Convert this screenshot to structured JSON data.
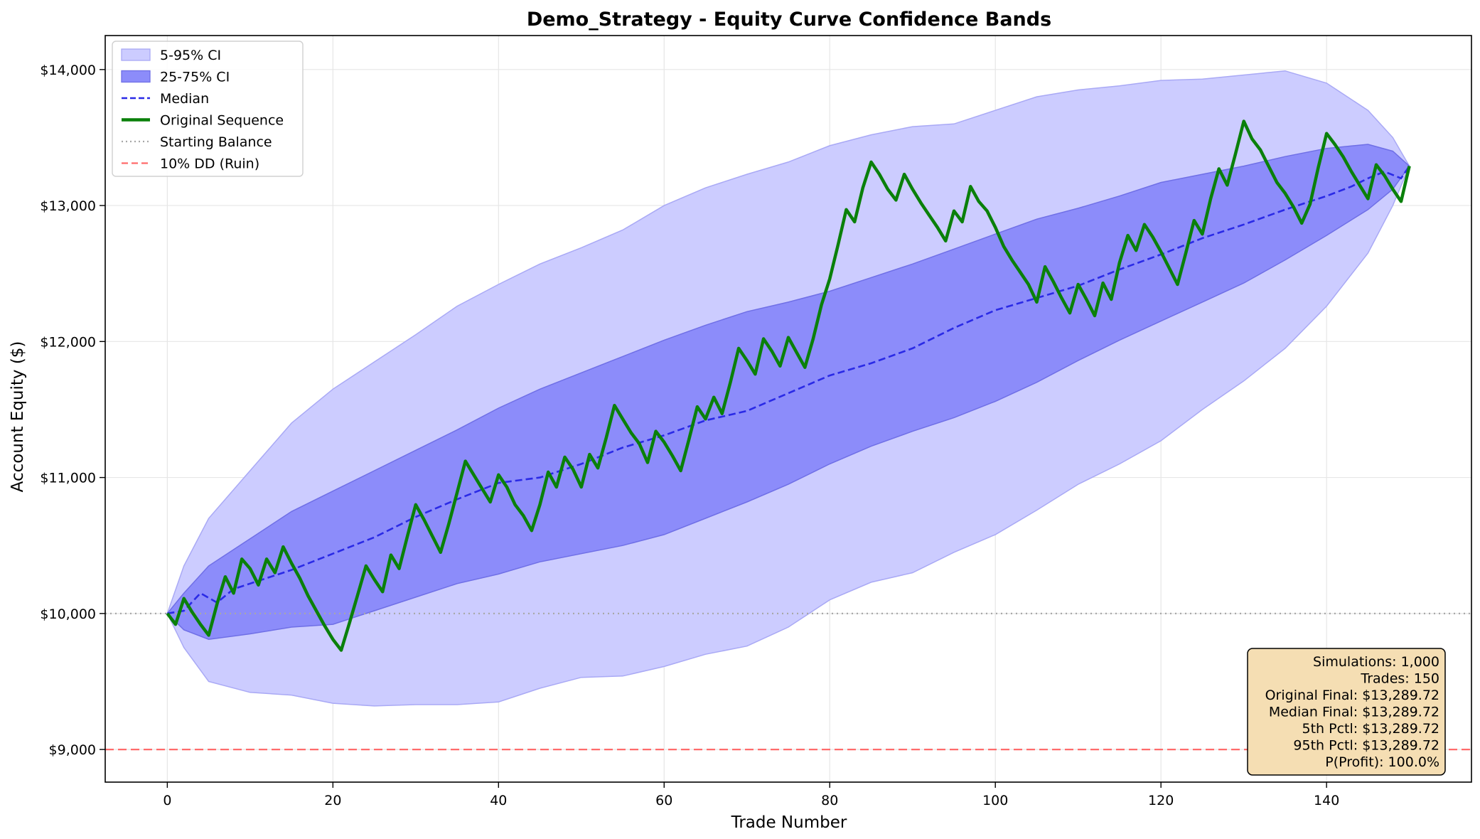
{
  "chart_data": {
    "type": "area",
    "title": "Demo_Strategy - Equity Curve Confidence Bands",
    "xlabel": "Trade Number",
    "ylabel": "Account Equity ($)",
    "xlim": [
      -7.5,
      157.5
    ],
    "ylim": [
      8760,
      14250
    ],
    "xticks": [
      0,
      20,
      40,
      60,
      80,
      100,
      120,
      140
    ],
    "xtick_labels": [
      "0",
      "20",
      "40",
      "60",
      "80",
      "100",
      "120",
      "140"
    ],
    "yticks": [
      9000,
      10000,
      11000,
      12000,
      13000,
      14000
    ],
    "ytick_labels": [
      "$9,000",
      "$10,000",
      "$11,000",
      "$12,000",
      "$13,000",
      "$14,000"
    ],
    "grid": true,
    "legend_position": "top-left",
    "colors": {
      "band_outer": "#ccccff",
      "band_outer_edge": "#a9a9f5",
      "band_inner": "#8c8cfa",
      "band_inner_edge": "#6f6fe6",
      "median": "#2a2ae6",
      "original": "#0a800a",
      "starting_balance": "#a8a8a8",
      "ruin": "#ff6b6b"
    },
    "legend": [
      {
        "key": "outer",
        "label": "5-95% CI"
      },
      {
        "key": "inner",
        "label": "25-75% CI"
      },
      {
        "key": "median",
        "label": "Median"
      },
      {
        "key": "original",
        "label": "Original Sequence"
      },
      {
        "key": "start",
        "label": "Starting Balance"
      },
      {
        "key": "ruin",
        "label": "10% DD (Ruin)"
      }
    ],
    "reference_lines": [
      {
        "name": "Starting Balance",
        "y": 10000,
        "style": "dotted"
      },
      {
        "name": "10% DD (Ruin)",
        "y": 9000,
        "style": "dashed"
      }
    ],
    "series": [
      {
        "name": "5-95% CI",
        "kind": "band",
        "x": [
          0,
          2,
          5,
          10,
          15,
          20,
          25,
          30,
          35,
          40,
          45,
          50,
          55,
          60,
          65,
          70,
          75,
          80,
          85,
          90,
          95,
          100,
          105,
          110,
          115,
          120,
          125,
          130,
          135,
          140,
          145,
          148,
          150
        ],
        "lower": [
          10000,
          9750,
          9500,
          9420,
          9400,
          9340,
          9320,
          9330,
          9330,
          9350,
          9450,
          9530,
          9540,
          9610,
          9700,
          9760,
          9900,
          10100,
          10230,
          10300,
          10450,
          10580,
          10760,
          10950,
          11100,
          11270,
          11500,
          11710,
          11950,
          12260,
          12650,
          13000,
          13290
        ],
        "upper": [
          10000,
          10350,
          10700,
          11050,
          11400,
          11650,
          11850,
          12050,
          12260,
          12420,
          12570,
          12690,
          12820,
          13000,
          13130,
          13230,
          13320,
          13440,
          13520,
          13580,
          13600,
          13700,
          13800,
          13850,
          13880,
          13920,
          13930,
          13960,
          13990,
          13900,
          13700,
          13500,
          13290
        ]
      },
      {
        "name": "25-75% CI",
        "kind": "band",
        "x": [
          0,
          2,
          5,
          10,
          15,
          20,
          25,
          30,
          35,
          40,
          45,
          50,
          55,
          60,
          65,
          70,
          75,
          80,
          85,
          90,
          95,
          100,
          105,
          110,
          115,
          120,
          125,
          130,
          135,
          140,
          145,
          148,
          150
        ],
        "lower": [
          10000,
          9880,
          9810,
          9850,
          9900,
          9920,
          10020,
          10120,
          10220,
          10290,
          10380,
          10440,
          10500,
          10580,
          10700,
          10820,
          10950,
          11100,
          11230,
          11340,
          11440,
          11560,
          11700,
          11860,
          12010,
          12150,
          12290,
          12430,
          12600,
          12780,
          12970,
          13120,
          13290
        ],
        "upper": [
          10000,
          10150,
          10350,
          10550,
          10750,
          10900,
          11050,
          11200,
          11350,
          11510,
          11650,
          11770,
          11890,
          12010,
          12120,
          12220,
          12290,
          12370,
          12470,
          12570,
          12680,
          12790,
          12900,
          12980,
          13070,
          13170,
          13230,
          13290,
          13360,
          13420,
          13450,
          13400,
          13290
        ]
      },
      {
        "name": "Median",
        "kind": "line",
        "x": [
          0,
          2,
          4,
          6,
          8,
          10,
          12,
          15,
          20,
          25,
          30,
          35,
          40,
          45,
          50,
          55,
          60,
          65,
          70,
          75,
          80,
          85,
          90,
          95,
          100,
          105,
          110,
          115,
          120,
          125,
          130,
          135,
          140,
          143,
          145,
          147,
          149,
          150
        ],
        "y": [
          10000,
          10020,
          10150,
          10080,
          10180,
          10220,
          10260,
          10320,
          10440,
          10560,
          10710,
          10840,
          10960,
          11000,
          11100,
          11220,
          11310,
          11420,
          11490,
          11620,
          11750,
          11840,
          11950,
          12100,
          12230,
          12320,
          12410,
          12530,
          12640,
          12760,
          12860,
          12970,
          13070,
          13140,
          13200,
          13250,
          13200,
          13290
        ]
      },
      {
        "name": "Original Sequence",
        "kind": "line",
        "x": [
          0,
          1,
          2,
          3,
          4,
          5,
          6,
          7,
          8,
          9,
          10,
          11,
          12,
          13,
          14,
          15,
          16,
          17,
          18,
          19,
          20,
          21,
          22,
          23,
          24,
          25,
          26,
          27,
          28,
          29,
          30,
          31,
          32,
          33,
          34,
          35,
          36,
          37,
          38,
          39,
          40,
          41,
          42,
          43,
          44,
          45,
          46,
          47,
          48,
          49,
          50,
          51,
          52,
          53,
          54,
          55,
          56,
          57,
          58,
          59,
          60,
          61,
          62,
          63,
          64,
          65,
          66,
          67,
          68,
          69,
          70,
          71,
          72,
          73,
          74,
          75,
          76,
          77,
          78,
          79,
          80,
          81,
          82,
          83,
          84,
          85,
          86,
          87,
          88,
          89,
          90,
          91,
          92,
          93,
          94,
          95,
          96,
          97,
          98,
          99,
          100,
          101,
          102,
          103,
          104,
          105,
          106,
          107,
          108,
          109,
          110,
          111,
          112,
          113,
          114,
          115,
          116,
          117,
          118,
          119,
          120,
          121,
          122,
          123,
          124,
          125,
          126,
          127,
          128,
          129,
          130,
          131,
          132,
          133,
          134,
          135,
          136,
          137,
          138,
          139,
          140,
          141,
          142,
          143,
          144,
          145,
          146,
          147,
          148,
          149,
          150
        ],
        "y": [
          10000,
          9920,
          10110,
          10010,
          9920,
          9840,
          10070,
          10270,
          10150,
          10400,
          10330,
          10210,
          10400,
          10300,
          10490,
          10370,
          10260,
          10130,
          10020,
          9910,
          9810,
          9730,
          9930,
          10140,
          10350,
          10250,
          10160,
          10430,
          10330,
          10570,
          10800,
          10690,
          10570,
          10450,
          10660,
          10890,
          11120,
          11020,
          10920,
          10820,
          11020,
          10930,
          10800,
          10720,
          10610,
          10800,
          11040,
          10930,
          11150,
          11060,
          10930,
          11170,
          11070,
          11290,
          11530,
          11430,
          11330,
          11250,
          11110,
          11340,
          11260,
          11160,
          11050,
          11280,
          11520,
          11430,
          11590,
          11470,
          11700,
          11950,
          11860,
          11760,
          12020,
          11930,
          11820,
          12030,
          11920,
          11810,
          12020,
          12270,
          12460,
          12710,
          12970,
          12880,
          13130,
          13320,
          13230,
          13120,
          13040,
          13230,
          13120,
          13020,
          12930,
          12840,
          12740,
          12960,
          12880,
          13140,
          13030,
          12960,
          12840,
          12700,
          12600,
          12510,
          12420,
          12290,
          12550,
          12440,
          12320,
          12210,
          12420,
          12310,
          12190,
          12430,
          12310,
          12580,
          12780,
          12670,
          12860,
          12770,
          12660,
          12540,
          12420,
          12650,
          12890,
          12790,
          13050,
          13270,
          13150,
          13380,
          13620,
          13490,
          13410,
          13290,
          13170,
          13090,
          12990,
          12870,
          13010,
          13280,
          13530,
          13450,
          13360,
          13250,
          13150,
          13050,
          13300,
          13220,
          13120,
          13030,
          13290
        ]
      }
    ],
    "stats_box": [
      "Simulations: 1,000",
      "Trades: 150",
      "Original Final: $13,289.72",
      "Median Final: $13,289.72",
      "5th Pctl: $13,289.72",
      "95th Pctl: $13,289.72",
      "P(Profit): 100.0%"
    ]
  }
}
